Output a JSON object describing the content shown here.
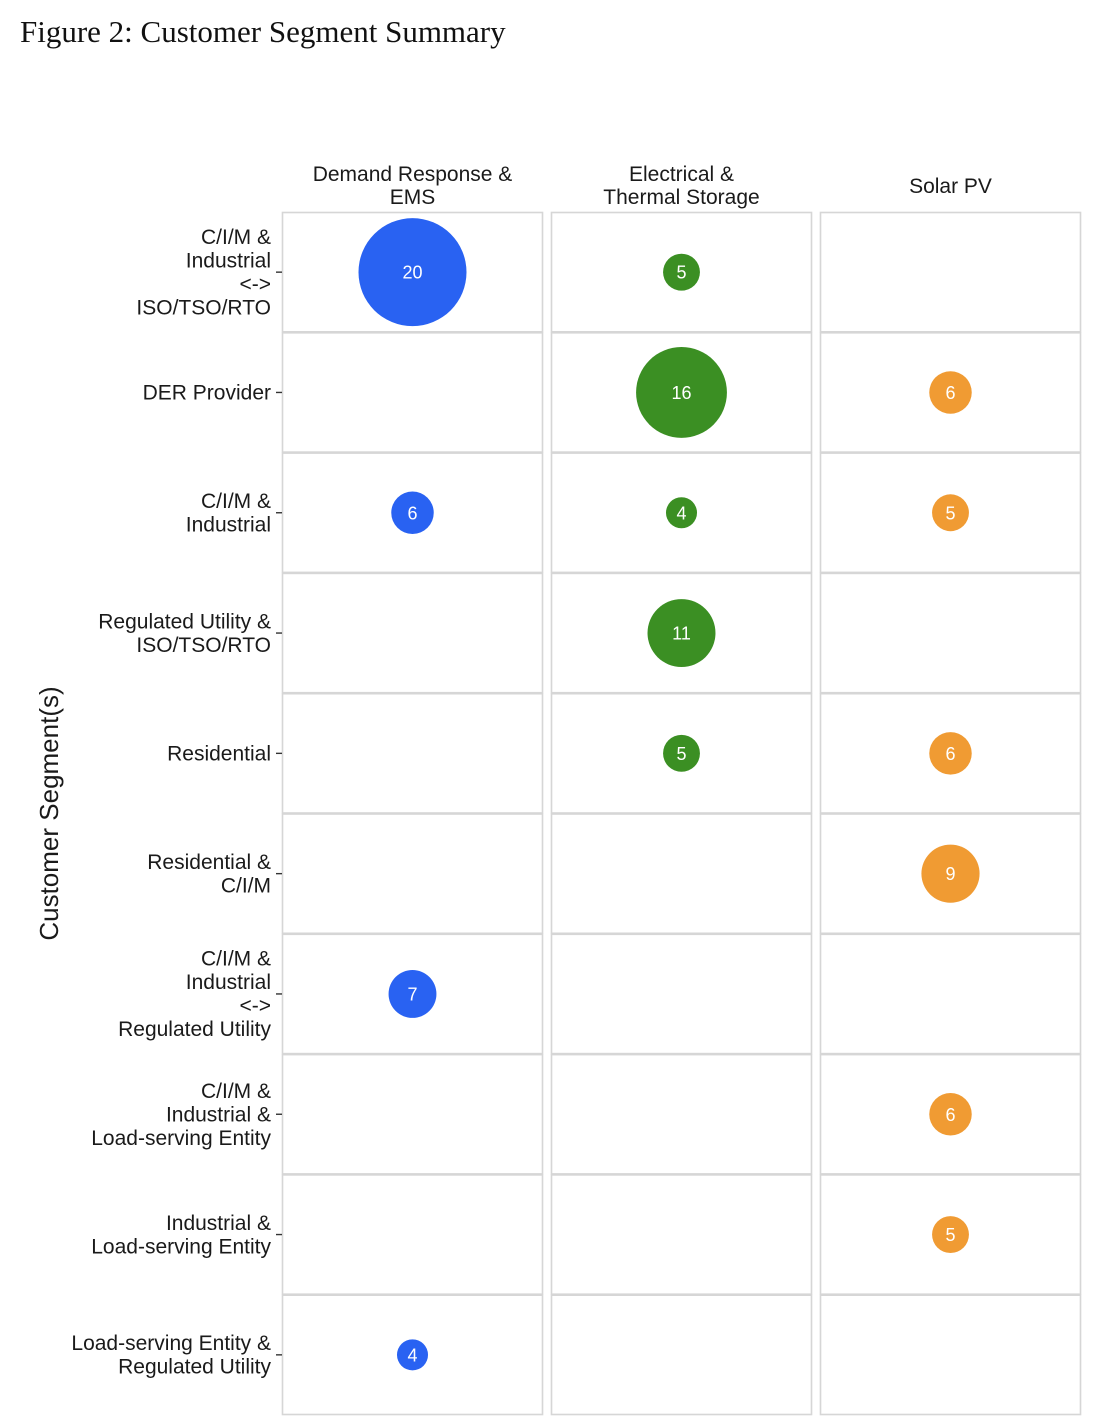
{
  "figure_title": "Figure 2: Customer Segment Summary",
  "chart_data": {
    "type": "scatter",
    "title": "",
    "xlabel": "",
    "ylabel": "Customer Segment(s)",
    "columns": [
      {
        "label_lines": [
          "Demand Response &",
          "EMS"
        ],
        "color": "#2962f2"
      },
      {
        "label_lines": [
          "Electrical &",
          "Thermal Storage"
        ],
        "color": "#3b8f23"
      },
      {
        "label_lines": [
          "Solar PV"
        ],
        "color": "#f09b33"
      }
    ],
    "rows": [
      {
        "label_lines": [
          "C/I/M &",
          "Industrial",
          "<->",
          "ISO/TSO/RTO"
        ],
        "values": [
          20,
          5,
          null
        ]
      },
      {
        "label_lines": [
          "DER Provider"
        ],
        "values": [
          null,
          16,
          6
        ]
      },
      {
        "label_lines": [
          "C/I/M &",
          "Industrial"
        ],
        "values": [
          6,
          4,
          5
        ]
      },
      {
        "label_lines": [
          "Regulated Utility  &",
          "ISO/TSO/RTO"
        ],
        "values": [
          null,
          11,
          null
        ]
      },
      {
        "label_lines": [
          "Residential"
        ],
        "values": [
          null,
          5,
          6
        ]
      },
      {
        "label_lines": [
          "Residential &",
          "C/I/M"
        ],
        "values": [
          null,
          null,
          9
        ]
      },
      {
        "label_lines": [
          "C/I/M &",
          "Industrial",
          "<->",
          "Regulated Utility"
        ],
        "values": [
          7,
          null,
          null
        ]
      },
      {
        "label_lines": [
          "C/I/M &",
          "Industrial &",
          "Load-serving Entity"
        ],
        "values": [
          null,
          null,
          6
        ]
      },
      {
        "label_lines": [
          "Industrial &",
          "Load-serving Entity"
        ],
        "values": [
          null,
          null,
          5
        ]
      },
      {
        "label_lines": [
          "Load-serving Entity &",
          "Regulated Utility"
        ],
        "values": [
          4,
          null,
          null
        ]
      }
    ],
    "size_encoding": "bubble area proportional to count",
    "grid": true,
    "legend": "none"
  }
}
